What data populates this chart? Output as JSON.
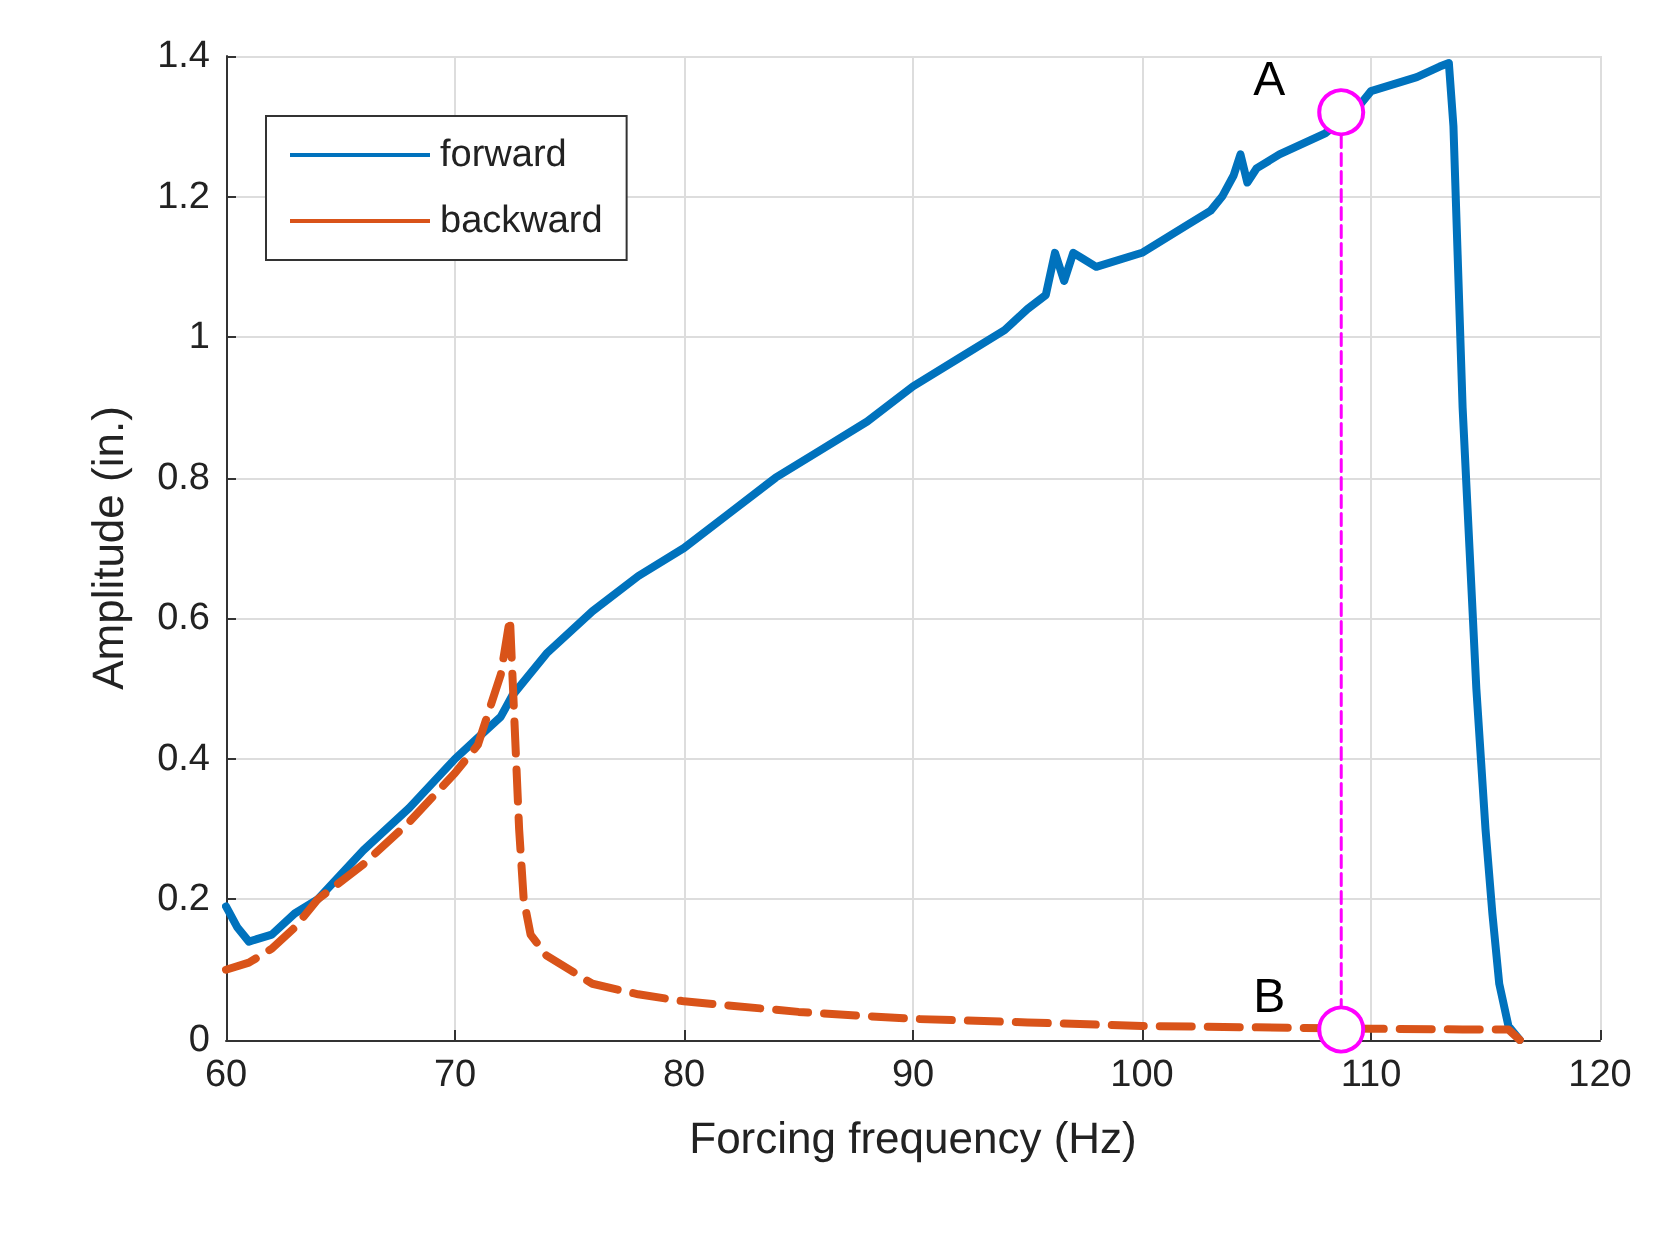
{
  "chart_data": {
    "type": "line",
    "xlabel": "Forcing frequency (Hz)",
    "ylabel": "Amplitude (in.)",
    "xlim": [
      60,
      120
    ],
    "xticks": [
      60,
      70,
      80,
      90,
      100,
      110,
      120
    ],
    "ylim": [
      0,
      1.4
    ],
    "yticks": [
      0,
      0.2,
      0.4,
      0.6,
      0.8,
      1,
      1.2,
      1.4
    ],
    "grid": true,
    "legend": "top left",
    "marker": "none",
    "series": [
      {
        "name": "forward",
        "color": "#0072bd",
        "line_style": "solid",
        "x": [
          60,
          60.5,
          61,
          62,
          63,
          64,
          66,
          68,
          70,
          71,
          72,
          72.5,
          74,
          76,
          78,
          80,
          82,
          84,
          86,
          88,
          90,
          92,
          94,
          95,
          95.8,
          96.2,
          96.6,
          97,
          98,
          100,
          102,
          103,
          103.5,
          104,
          104.3,
          104.6,
          105,
          106,
          108,
          109.5,
          110,
          111,
          112,
          113,
          113.4,
          113.6,
          113.8,
          114,
          114.3,
          114.6,
          115,
          115.3,
          115.6,
          116,
          116.5
        ],
        "values": [
          0.19,
          0.16,
          0.14,
          0.15,
          0.18,
          0.2,
          0.27,
          0.33,
          0.4,
          0.43,
          0.46,
          0.49,
          0.55,
          0.61,
          0.66,
          0.7,
          0.75,
          0.8,
          0.84,
          0.88,
          0.93,
          0.97,
          1.01,
          1.04,
          1.06,
          1.12,
          1.08,
          1.12,
          1.1,
          1.12,
          1.16,
          1.18,
          1.2,
          1.23,
          1.26,
          1.22,
          1.24,
          1.26,
          1.29,
          1.33,
          1.35,
          1.36,
          1.37,
          1.385,
          1.39,
          1.3,
          1.1,
          0.9,
          0.7,
          0.5,
          0.3,
          0.18,
          0.08,
          0.02,
          0
        ]
      },
      {
        "name": "backward",
        "color": "#d95319",
        "line_style": "dashed",
        "x": [
          60,
          61,
          62,
          63,
          64,
          66,
          68,
          70,
          71,
          71.5,
          72,
          72.4,
          72.6,
          72.8,
          73,
          73.3,
          74,
          75,
          76,
          78,
          80,
          85,
          90,
          95,
          100,
          105,
          110,
          114,
          116,
          116.5
        ],
        "values": [
          0.1,
          0.11,
          0.13,
          0.16,
          0.2,
          0.25,
          0.31,
          0.38,
          0.42,
          0.47,
          0.52,
          0.6,
          0.45,
          0.3,
          0.2,
          0.15,
          0.12,
          0.1,
          0.08,
          0.065,
          0.055,
          0.04,
          0.03,
          0.025,
          0.02,
          0.018,
          0.016,
          0.015,
          0.015,
          0
        ]
      },
      {
        "color": "#ff00ff",
        "line_style": "dashed",
        "marker": "circle",
        "x": [
          108.7,
          108.7
        ],
        "values": [
          0.015,
          1.32
        ]
      }
    ],
    "annotations": [
      {
        "text": "A",
        "x": 108.7,
        "y": 1.32
      },
      {
        "text": "B",
        "x": 108.7,
        "y": 0.015
      }
    ]
  }
}
